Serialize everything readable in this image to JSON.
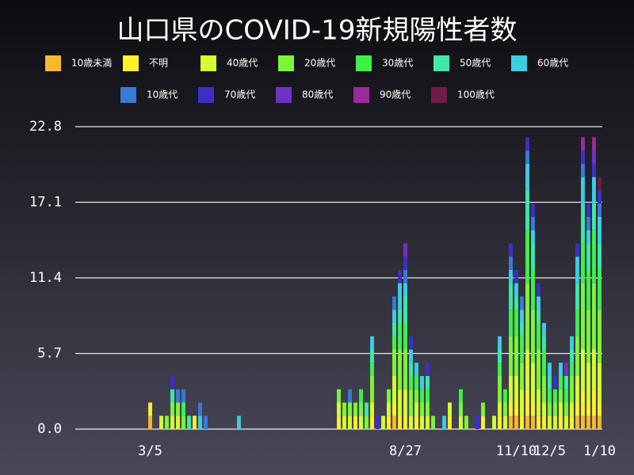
{
  "chart_data": {
    "type": "stacked_bar",
    "title": "山口県のCOVID-19新規陽性者数",
    "categories": [
      null,
      null,
      null,
      null,
      null,
      null,
      null,
      null,
      null,
      null,
      null,
      null,
      null,
      "3/5",
      null,
      null,
      null,
      null,
      null,
      null,
      null,
      null,
      null,
      null,
      null,
      null,
      null,
      null,
      null,
      null,
      null,
      null,
      null,
      null,
      null,
      null,
      null,
      null,
      null,
      null,
      null,
      null,
      null,
      null,
      null,
      null,
      null,
      null,
      null,
      null,
      null,
      null,
      null,
      null,
      null,
      null,
      null,
      null,
      null,
      "8/27",
      null,
      null,
      null,
      null,
      null,
      null,
      null,
      null,
      null,
      null,
      null,
      null,
      null,
      null,
      null,
      null,
      null,
      null,
      null,
      "11/10",
      null,
      null,
      null,
      null,
      null,
      "12/5",
      null,
      null,
      null,
      null,
      null,
      null,
      null,
      null,
      "1/10"
    ],
    "ylim": [
      0,
      22.8
    ],
    "yticks": [
      {
        "value": 0,
        "label": "0.0"
      },
      5.7,
      11.4,
      17.1,
      22.8
    ],
    "grid": true,
    "series": [
      {
        "name": "10歳未満",
        "color": "#f8b92a",
        "values": [
          0,
          0,
          0,
          0,
          0,
          0,
          0,
          0,
          0,
          0,
          0,
          0,
          0,
          1,
          0,
          0,
          0,
          0,
          0,
          0,
          0,
          0,
          0,
          0,
          0,
          0,
          0,
          0,
          0,
          0,
          0,
          0,
          0,
          0,
          0,
          0,
          0,
          0,
          0,
          0,
          0,
          0,
          0,
          0,
          0,
          0,
          0,
          0,
          0,
          0,
          0,
          0,
          0,
          0,
          0,
          0,
          0,
          1,
          0,
          0,
          0,
          0,
          0,
          0,
          0,
          0,
          0,
          0,
          0,
          0,
          0,
          0,
          0,
          0,
          0,
          0,
          0,
          0,
          1,
          1,
          0,
          1,
          1,
          0,
          0,
          0,
          0,
          0,
          0,
          0,
          1,
          1,
          1,
          1,
          1
        ]
      },
      {
        "name": "不明",
        "color": "#fff02a",
        "values": [
          0,
          0,
          0,
          0,
          0,
          0,
          0,
          0,
          0,
          0,
          0,
          0,
          0,
          1,
          0,
          0,
          0,
          0,
          0,
          0,
          0,
          1,
          0,
          0,
          0,
          0,
          0,
          0,
          0,
          0,
          0,
          0,
          0,
          0,
          0,
          0,
          0,
          0,
          0,
          0,
          0,
          0,
          0,
          0,
          0,
          0,
          0,
          1,
          0,
          0,
          1,
          0,
          0,
          1,
          0,
          0,
          1,
          1,
          1,
          1,
          0,
          1,
          0,
          0,
          0,
          0,
          0,
          1,
          0,
          0,
          0,
          0,
          0,
          1,
          0,
          0,
          1,
          0,
          1,
          1,
          1,
          2,
          1,
          1,
          1,
          0,
          0,
          1,
          0,
          1,
          1,
          2,
          1,
          2,
          1
        ]
      },
      {
        "name": "40歳代",
        "color": "#d4ff30",
        "values": [
          0,
          0,
          0,
          0,
          0,
          0,
          0,
          0,
          0,
          0,
          0,
          0,
          0,
          0,
          0,
          1,
          0,
          1,
          1,
          0,
          0,
          0,
          0,
          0,
          0,
          0,
          0,
          0,
          0,
          0,
          0,
          0,
          0,
          0,
          0,
          0,
          0,
          0,
          0,
          0,
          0,
          0,
          0,
          0,
          0,
          0,
          0,
          1,
          1,
          1,
          0,
          1,
          0,
          1,
          0,
          1,
          1,
          2,
          2,
          2,
          1,
          1,
          1,
          1,
          0,
          0,
          0,
          1,
          0,
          1,
          0,
          0,
          0,
          0,
          0,
          1,
          1,
          1,
          2,
          2,
          2,
          3,
          3,
          2,
          1,
          1,
          1,
          1,
          1,
          1,
          2,
          3,
          3,
          3,
          3
        ]
      },
      {
        "name": "20歳代",
        "color": "#7cf53a",
        "values": [
          0,
          0,
          0,
          0,
          0,
          0,
          0,
          0,
          0,
          0,
          0,
          0,
          0,
          0,
          0,
          0,
          1,
          1,
          1,
          1,
          0,
          0,
          0,
          0,
          0,
          0,
          0,
          0,
          0,
          0,
          0,
          0,
          0,
          0,
          0,
          0,
          0,
          0,
          0,
          0,
          0,
          0,
          0,
          0,
          0,
          0,
          0,
          1,
          1,
          1,
          1,
          1,
          1,
          2,
          0,
          0,
          1,
          2,
          3,
          3,
          2,
          1,
          1,
          1,
          1,
          0,
          0,
          0,
          0,
          1,
          1,
          0,
          0,
          1,
          0,
          0,
          2,
          1,
          3,
          3,
          2,
          5,
          4,
          3,
          2,
          1,
          1,
          1,
          1,
          2,
          3,
          5,
          4,
          5,
          4
        ]
      },
      {
        "name": "30歳代",
        "color": "#3ef04c",
        "values": [
          0,
          0,
          0,
          0,
          0,
          0,
          0,
          0,
          0,
          0,
          0,
          0,
          0,
          0,
          0,
          0,
          0,
          0,
          0,
          1,
          0,
          0,
          0,
          0,
          0,
          0,
          0,
          0,
          0,
          0,
          0,
          0,
          0,
          0,
          0,
          0,
          0,
          0,
          0,
          0,
          0,
          0,
          0,
          0,
          0,
          0,
          0,
          0,
          0,
          0,
          0,
          1,
          0,
          1,
          0,
          0,
          0,
          1,
          2,
          2,
          1,
          1,
          1,
          1,
          0,
          0,
          0,
          0,
          0,
          1,
          0,
          0,
          0,
          0,
          0,
          0,
          1,
          1,
          2,
          2,
          2,
          4,
          3,
          2,
          2,
          1,
          1,
          1,
          1,
          1,
          2,
          3,
          3,
          4,
          3
        ]
      },
      {
        "name": "50歳代",
        "color": "#3ee8a8",
        "values": [
          0,
          0,
          0,
          0,
          0,
          0,
          0,
          0,
          0,
          0,
          0,
          0,
          0,
          0,
          0,
          0,
          0,
          1,
          0,
          0,
          1,
          0,
          0,
          0,
          0,
          0,
          0,
          0,
          0,
          0,
          0,
          0,
          0,
          0,
          0,
          0,
          0,
          0,
          0,
          0,
          0,
          0,
          0,
          0,
          0,
          0,
          0,
          0,
          0,
          0,
          0,
          0,
          1,
          1,
          0,
          0,
          0,
          1,
          1,
          2,
          1,
          0,
          0,
          1,
          0,
          0,
          0,
          0,
          0,
          0,
          0,
          0,
          0,
          0,
          0,
          0,
          1,
          0,
          2,
          1,
          1,
          3,
          2,
          1,
          1,
          1,
          0,
          0,
          1,
          1,
          2,
          3,
          2,
          2,
          2
        ]
      },
      {
        "name": "60歳代",
        "color": "#3ccde4",
        "values": [
          0,
          0,
          0,
          0,
          0,
          0,
          0,
          0,
          0,
          0,
          0,
          0,
          0,
          0,
          0,
          0,
          0,
          0,
          0,
          0,
          0,
          0,
          1,
          0,
          0,
          0,
          0,
          0,
          0,
          1,
          0,
          0,
          0,
          0,
          0,
          0,
          0,
          0,
          0,
          0,
          0,
          0,
          0,
          0,
          0,
          0,
          0,
          0,
          0,
          0,
          0,
          0,
          0,
          1,
          0,
          0,
          0,
          1,
          2,
          1,
          1,
          1,
          1,
          0,
          0,
          0,
          1,
          0,
          0,
          0,
          0,
          0,
          0,
          0,
          0,
          0,
          1,
          0,
          1,
          1,
          1,
          2,
          1,
          1,
          1,
          1,
          0,
          1,
          0,
          1,
          2,
          2,
          1,
          2,
          2
        ]
      },
      {
        "name": "10歳代",
        "color": "#3a7ad8",
        "values": [
          0,
          0,
          0,
          0,
          0,
          0,
          0,
          0,
          0,
          0,
          0,
          0,
          0,
          0,
          0,
          0,
          0,
          0,
          1,
          1,
          0,
          0,
          1,
          1,
          0,
          0,
          0,
          0,
          0,
          0,
          0,
          0,
          0,
          0,
          0,
          0,
          0,
          0,
          0,
          0,
          0,
          0,
          0,
          0,
          0,
          0,
          0,
          0,
          0,
          1,
          0,
          0,
          0,
          0,
          0,
          0,
          0,
          1,
          0,
          1,
          0,
          0,
          0,
          0,
          0,
          0,
          0,
          0,
          0,
          0,
          0,
          0,
          0,
          0,
          0,
          0,
          0,
          0,
          1,
          0,
          1,
          1,
          1,
          0,
          0,
          0,
          0,
          0,
          0,
          0,
          0,
          1,
          1,
          0,
          1
        ]
      },
      {
        "name": "70歳代",
        "color": "#3a30c8",
        "values": [
          0,
          0,
          0,
          0,
          0,
          0,
          0,
          0,
          0,
          0,
          0,
          0,
          0,
          0,
          0,
          0,
          0,
          1,
          0,
          0,
          0,
          0,
          0,
          0,
          0,
          0,
          0,
          0,
          0,
          0,
          0,
          0,
          0,
          0,
          0,
          0,
          0,
          0,
          0,
          0,
          0,
          0,
          0,
          0,
          0,
          0,
          0,
          0,
          0,
          0,
          0,
          0,
          0,
          0,
          1,
          0,
          0,
          0,
          1,
          1,
          1,
          0,
          0,
          1,
          0,
          0,
          0,
          0,
          0,
          0,
          0,
          0,
          1,
          0,
          0,
          0,
          0,
          0,
          1,
          1,
          0,
          1,
          1,
          1,
          0,
          0,
          1,
          0,
          0,
          0,
          1,
          1,
          1,
          1,
          1
        ]
      },
      {
        "name": "80歳代",
        "color": "#7032c0",
        "values": [
          0,
          0,
          0,
          0,
          0,
          0,
          0,
          0,
          0,
          0,
          0,
          0,
          0,
          0,
          0,
          0,
          0,
          0,
          0,
          0,
          0,
          0,
          0,
          0,
          0,
          0,
          0,
          0,
          0,
          0,
          0,
          0,
          0,
          0,
          0,
          0,
          0,
          0,
          0,
          0,
          0,
          0,
          0,
          0,
          0,
          0,
          0,
          0,
          0,
          0,
          0,
          0,
          0,
          0,
          0,
          0,
          0,
          0,
          0,
          1,
          0,
          0,
          0,
          0,
          0,
          0,
          0,
          0,
          0,
          0,
          0,
          0,
          0,
          0,
          0,
          0,
          0,
          0,
          0,
          0,
          0,
          0,
          0,
          0,
          0,
          0,
          0,
          0,
          1,
          0,
          0,
          0,
          0,
          1,
          0
        ]
      },
      {
        "name": "90歳代",
        "color": "#9a2a9e",
        "values": [
          0,
          0,
          0,
          0,
          0,
          0,
          0,
          0,
          0,
          0,
          0,
          0,
          0,
          0,
          0,
          0,
          0,
          0,
          0,
          0,
          0,
          0,
          0,
          0,
          0,
          0,
          0,
          0,
          0,
          0,
          0,
          0,
          0,
          0,
          0,
          0,
          0,
          0,
          0,
          0,
          0,
          0,
          0,
          0,
          0,
          0,
          0,
          0,
          0,
          0,
          0,
          0,
          0,
          0,
          0,
          0,
          0,
          0,
          0,
          0,
          0,
          0,
          0,
          0,
          0,
          0,
          0,
          0,
          0,
          0,
          0,
          0,
          0,
          0,
          0,
          0,
          0,
          0,
          0,
          0,
          0,
          0,
          0,
          0,
          0,
          0,
          0,
          0,
          0,
          0,
          0,
          1,
          0,
          1,
          0
        ]
      },
      {
        "name": "100歳代",
        "color": "#701c4a",
        "values": [
          0,
          0,
          0,
          0,
          0,
          0,
          0,
          0,
          0,
          0,
          0,
          0,
          0,
          0,
          0,
          0,
          0,
          0,
          0,
          0,
          0,
          0,
          0,
          0,
          0,
          0,
          0,
          0,
          0,
          0,
          0,
          0,
          0,
          0,
          0,
          0,
          0,
          0,
          0,
          0,
          0,
          0,
          0,
          0,
          0,
          0,
          0,
          0,
          0,
          0,
          0,
          0,
          0,
          0,
          0,
          0,
          0,
          0,
          0,
          0,
          0,
          0,
          0,
          0,
          0,
          0,
          0,
          0,
          0,
          0,
          0,
          0,
          0,
          0,
          0,
          0,
          0,
          0,
          0,
          0,
          0,
          0,
          0,
          0,
          0,
          0,
          0,
          0,
          0,
          0,
          0,
          0,
          0,
          0,
          1
        ]
      }
    ]
  }
}
